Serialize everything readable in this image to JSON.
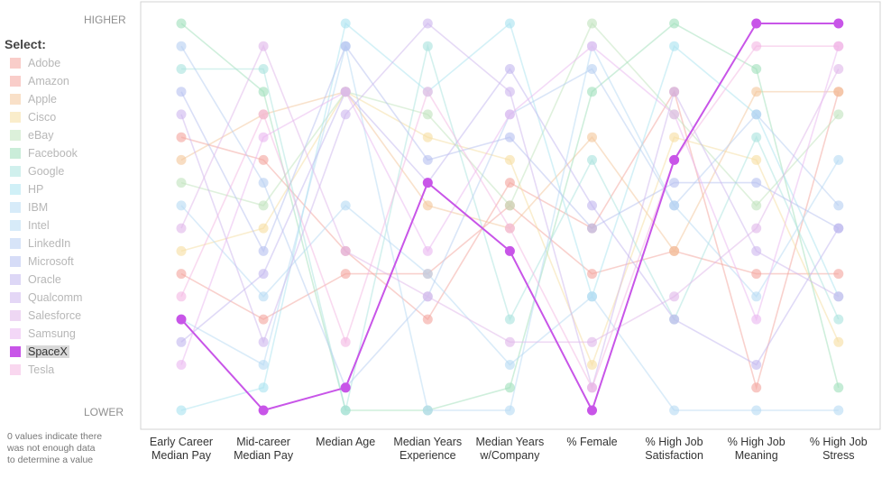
{
  "labels": {
    "higher": "HIGHER",
    "lower": "LOWER",
    "select": "Select:",
    "note_lines": [
      "0 values indicate there",
      "was not enough data",
      "to determine a value"
    ]
  },
  "selected": "SpaceX",
  "chart_data": {
    "type": "line",
    "axes": [
      "Early Career Median Pay",
      "Mid-career Median Pay",
      "Median Age",
      "Median Years Experience",
      "Median Years w/Company",
      "% Female",
      "% High Job Satisfaction",
      "% High Job Meaning",
      "% High Job Stress"
    ],
    "axis_label_lines": [
      [
        "Early Career",
        "Median Pay"
      ],
      [
        "Mid-career",
        "Median Pay"
      ],
      [
        "Median Age"
      ],
      [
        "Median Years",
        "Experience"
      ],
      [
        "Median Years",
        "w/Company"
      ],
      [
        "% Female"
      ],
      [
        "% High Job",
        "Satisfaction"
      ],
      [
        "% High Job",
        "Meaning"
      ],
      [
        "% High Job",
        "Stress"
      ]
    ],
    "rank_min": 1,
    "rank_max": 18,
    "series": [
      {
        "name": "Adobe",
        "color": "#f4a49c",
        "ranks": [
          13,
          12,
          8,
          5,
          11,
          9,
          15,
          2,
          15
        ]
      },
      {
        "name": "Amazon",
        "color": "#f4a49c",
        "ranks": [
          7,
          5,
          7,
          7,
          10,
          7,
          8,
          7,
          7
        ]
      },
      {
        "name": "Apple",
        "color": "#f4c69a",
        "ranks": [
          12,
          14,
          15,
          10,
          9,
          13,
          8,
          15,
          15
        ]
      },
      {
        "name": "Cisco",
        "color": "#f6dea0",
        "ranks": [
          8,
          9,
          15,
          13,
          12,
          3,
          13,
          12,
          4
        ]
      },
      {
        "name": "eBay",
        "color": "#bfe3bc",
        "ranks": [
          11,
          10,
          15,
          14,
          10,
          18,
          14,
          10,
          14
        ]
      },
      {
        "name": "Facebook",
        "color": "#9fdfba",
        "ranks": [
          18,
          15,
          1,
          1,
          2,
          15,
          18,
          16,
          2
        ]
      },
      {
        "name": "Google",
        "color": "#a9e3de",
        "ranks": [
          16,
          16,
          1,
          17,
          5,
          12,
          5,
          13,
          5
        ]
      },
      {
        "name": "HP",
        "color": "#a9e3f0",
        "ranks": [
          1,
          2,
          18,
          15,
          18,
          6,
          17,
          14,
          6
        ]
      },
      {
        "name": "IBM",
        "color": "#b6daf4",
        "ranks": [
          5,
          3,
          17,
          1,
          1,
          17,
          10,
          6,
          12
        ]
      },
      {
        "name": "Intel",
        "color": "#b6daf4",
        "ranks": [
          10,
          6,
          10,
          7,
          3,
          6,
          1,
          1,
          1
        ]
      },
      {
        "name": "LinkedIn",
        "color": "#b6cef2",
        "ranks": [
          17,
          11,
          2,
          6,
          14,
          16,
          10,
          14,
          10
        ]
      },
      {
        "name": "Microsoft",
        "color": "#b5bff0",
        "ranks": [
          15,
          8,
          17,
          12,
          13,
          9,
          11,
          11,
          9
        ]
      },
      {
        "name": "Oracle",
        "color": "#c1b6ef",
        "ranks": [
          4,
          7,
          15,
          11,
          16,
          10,
          5,
          3,
          9
        ]
      },
      {
        "name": "Qualcomm",
        "color": "#cdb6ee",
        "ranks": [
          14,
          4,
          14,
          18,
          15,
          2,
          15,
          8,
          6
        ]
      },
      {
        "name": "Salesforce",
        "color": "#e0b6ea",
        "ranks": [
          9,
          17,
          8,
          6,
          4,
          4,
          6,
          9,
          16
        ]
      },
      {
        "name": "Samsung",
        "color": "#eab6f0",
        "ranks": [
          3,
          13,
          15,
          8,
          14,
          17,
          14,
          5,
          17
        ]
      },
      {
        "name": "SpaceX",
        "color": "#c855e8",
        "ranks": [
          5,
          1,
          2,
          11,
          8,
          1,
          12,
          18,
          18
        ]
      },
      {
        "name": "Tesla",
        "color": "#f4b6e2",
        "ranks": [
          6,
          14,
          4,
          15,
          9,
          2,
          12,
          17,
          17
        ]
      }
    ]
  }
}
